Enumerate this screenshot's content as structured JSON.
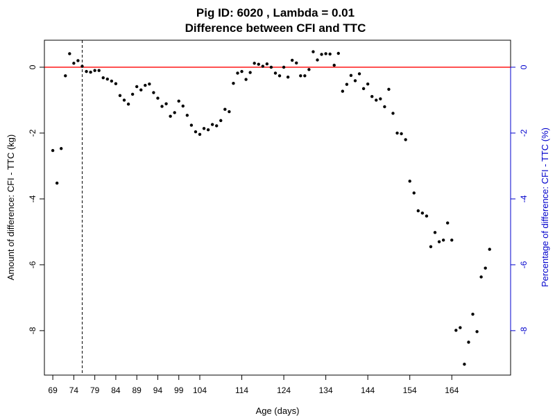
{
  "chart_data": {
    "type": "scatter",
    "title": "Pig ID: 6020 , Lambda = 0.01",
    "subtitle": "Difference between CFI and TTC",
    "xlabel": "Age (days)",
    "ylabel": "Amount of difference: CFI - TTC (kg)",
    "ylabel_right": "Percentage of difference: CFI - TTC (%)",
    "xlim": [
      67,
      178
    ],
    "ylim": [
      -9.35,
      0.82
    ],
    "x_ticks": [
      69,
      74,
      79,
      84,
      89,
      94,
      99,
      104,
      114,
      124,
      134,
      144,
      154,
      164
    ],
    "y_ticks": [
      0,
      -2,
      -4,
      -6,
      -8
    ],
    "y_ticks_right": [
      0,
      -2,
      -4,
      -6,
      -8
    ],
    "grid": false,
    "reference_lines": {
      "horizontal_y": 0,
      "horizontal_color": "#ff0000",
      "vertical_x": 76,
      "vertical_color": "#000000"
    },
    "colors": {
      "points": "#000000",
      "right_axis": "#0000cc"
    },
    "points": [
      {
        "x": 69,
        "y": -2.53
      },
      {
        "x": 70,
        "y": -3.52
      },
      {
        "x": 71,
        "y": -2.47
      },
      {
        "x": 72,
        "y": -0.26
      },
      {
        "x": 73,
        "y": 0.41
      },
      {
        "x": 74,
        "y": 0.12
      },
      {
        "x": 75,
        "y": 0.2
      },
      {
        "x": 76,
        "y": 0.03
      },
      {
        "x": 77,
        "y": -0.13
      },
      {
        "x": 78,
        "y": -0.15
      },
      {
        "x": 79,
        "y": -0.1
      },
      {
        "x": 80,
        "y": -0.1
      },
      {
        "x": 81,
        "y": -0.32
      },
      {
        "x": 82,
        "y": -0.36
      },
      {
        "x": 83,
        "y": -0.42
      },
      {
        "x": 84,
        "y": -0.5
      },
      {
        "x": 85,
        "y": -0.86
      },
      {
        "x": 86,
        "y": -1.0
      },
      {
        "x": 87,
        "y": -1.12
      },
      {
        "x": 88,
        "y": -0.82
      },
      {
        "x": 89,
        "y": -0.59
      },
      {
        "x": 90,
        "y": -0.69
      },
      {
        "x": 91,
        "y": -0.55
      },
      {
        "x": 92,
        "y": -0.51
      },
      {
        "x": 93,
        "y": -0.77
      },
      {
        "x": 94,
        "y": -0.94
      },
      {
        "x": 95,
        "y": -1.19
      },
      {
        "x": 96,
        "y": -1.11
      },
      {
        "x": 97,
        "y": -1.49
      },
      {
        "x": 98,
        "y": -1.38
      },
      {
        "x": 99,
        "y": -1.03
      },
      {
        "x": 100,
        "y": -1.18
      },
      {
        "x": 101,
        "y": -1.46
      },
      {
        "x": 102,
        "y": -1.76
      },
      {
        "x": 103,
        "y": -1.96
      },
      {
        "x": 104,
        "y": -2.04
      },
      {
        "x": 105,
        "y": -1.86
      },
      {
        "x": 106,
        "y": -1.9
      },
      {
        "x": 107,
        "y": -1.74
      },
      {
        "x": 108,
        "y": -1.78
      },
      {
        "x": 109,
        "y": -1.62
      },
      {
        "x": 110,
        "y": -1.28
      },
      {
        "x": 111,
        "y": -1.35
      },
      {
        "x": 112,
        "y": -0.49
      },
      {
        "x": 113,
        "y": -0.18
      },
      {
        "x": 114,
        "y": -0.13
      },
      {
        "x": 115,
        "y": -0.37
      },
      {
        "x": 116,
        "y": -0.16
      },
      {
        "x": 117,
        "y": 0.12
      },
      {
        "x": 118,
        "y": 0.09
      },
      {
        "x": 119,
        "y": 0.03
      },
      {
        "x": 120,
        "y": 0.1
      },
      {
        "x": 121,
        "y": 0.0
      },
      {
        "x": 122,
        "y": -0.18
      },
      {
        "x": 123,
        "y": -0.26
      },
      {
        "x": 124,
        "y": 0.0
      },
      {
        "x": 125,
        "y": -0.3
      },
      {
        "x": 126,
        "y": 0.21
      },
      {
        "x": 127,
        "y": 0.13
      },
      {
        "x": 128,
        "y": -0.26
      },
      {
        "x": 129,
        "y": -0.26
      },
      {
        "x": 130,
        "y": -0.07
      },
      {
        "x": 131,
        "y": 0.47
      },
      {
        "x": 132,
        "y": 0.22
      },
      {
        "x": 133,
        "y": 0.39
      },
      {
        "x": 134,
        "y": 0.41
      },
      {
        "x": 135,
        "y": 0.4
      },
      {
        "x": 136,
        "y": 0.06
      },
      {
        "x": 137,
        "y": 0.42
      },
      {
        "x": 138,
        "y": -0.73
      },
      {
        "x": 139,
        "y": -0.52
      },
      {
        "x": 140,
        "y": -0.25
      },
      {
        "x": 141,
        "y": -0.41
      },
      {
        "x": 142,
        "y": -0.2
      },
      {
        "x": 143,
        "y": -0.65
      },
      {
        "x": 144,
        "y": -0.51
      },
      {
        "x": 145,
        "y": -0.89
      },
      {
        "x": 146,
        "y": -1.0
      },
      {
        "x": 147,
        "y": -0.96
      },
      {
        "x": 148,
        "y": -1.2
      },
      {
        "x": 149,
        "y": -0.67
      },
      {
        "x": 150,
        "y": -1.4
      },
      {
        "x": 151,
        "y": -2.0
      },
      {
        "x": 152,
        "y": -2.02
      },
      {
        "x": 153,
        "y": -2.2
      },
      {
        "x": 154,
        "y": -3.46
      },
      {
        "x": 155,
        "y": -3.82
      },
      {
        "x": 156,
        "y": -4.36
      },
      {
        "x": 157,
        "y": -4.43
      },
      {
        "x": 158,
        "y": -4.52
      },
      {
        "x": 159,
        "y": -5.45
      },
      {
        "x": 160,
        "y": -5.02
      },
      {
        "x": 161,
        "y": -5.3
      },
      {
        "x": 162,
        "y": -5.25
      },
      {
        "x": 163,
        "y": -4.73
      },
      {
        "x": 164,
        "y": -5.25
      },
      {
        "x": 165,
        "y": -7.99
      },
      {
        "x": 166,
        "y": -7.91
      },
      {
        "x": 167,
        "y": -9.02
      },
      {
        "x": 168,
        "y": -8.35
      },
      {
        "x": 169,
        "y": -7.5
      },
      {
        "x": 170,
        "y": -8.03
      },
      {
        "x": 171,
        "y": -6.37
      },
      {
        "x": 172,
        "y": -6.1
      },
      {
        "x": 173,
        "y": -5.53
      }
    ]
  }
}
